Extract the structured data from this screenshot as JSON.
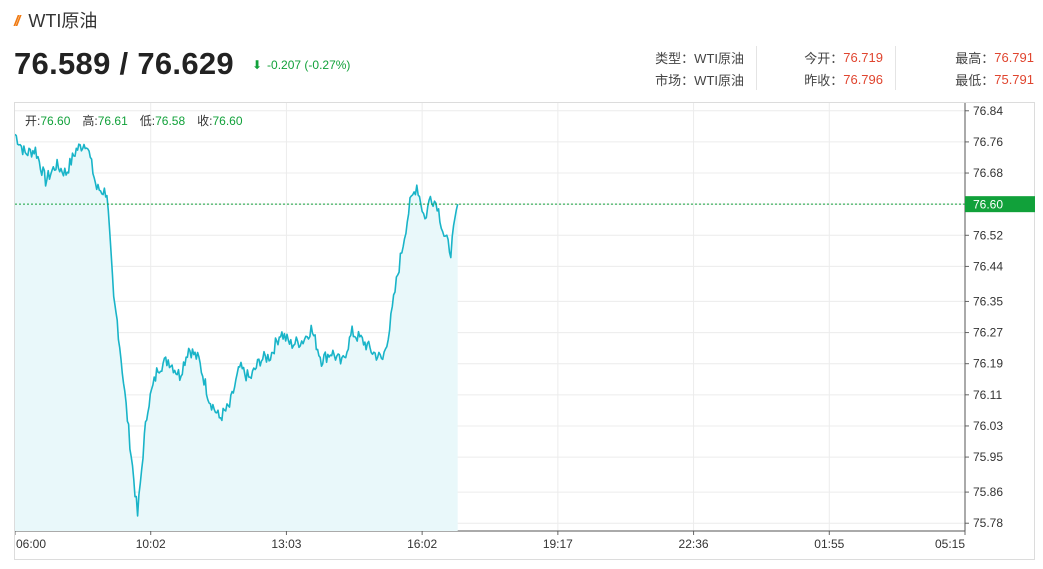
{
  "header": {
    "title": "WTI原油",
    "bid_ask": "76.589 / 76.629",
    "change": "-0.207 (-0.27%)"
  },
  "stats": {
    "type_label": "类型",
    "type_value": "WTI原油",
    "market_label": "市场",
    "market_value": "WTI原油",
    "open_label": "今开",
    "open_value": "76.719",
    "prev_close_label": "昨收",
    "prev_close_value": "76.796",
    "high_label": "最高",
    "high_value": "76.791",
    "low_label": "最低",
    "low_value": "75.791",
    "separator": "："
  },
  "ohlc": {
    "open_label": "开:",
    "open_value": "76.60",
    "high_label": "高:",
    "high_value": "76.61",
    "low_label": "低:",
    "low_value": "76.58",
    "close_label": "收:",
    "close_value": "76.60"
  },
  "colors": {
    "line": "#19b4c8",
    "fill": "#e9f8fa",
    "current_price": "#11a13a",
    "up": "#e0452f",
    "accent": "#f07a12"
  },
  "chart_data": {
    "type": "area",
    "x_tick_labels": [
      "06:00",
      "10:02",
      "13:03",
      "16:02",
      "19:17",
      "22:36",
      "01:55",
      "05:15"
    ],
    "y_tick_labels": [
      "76.84",
      "76.76",
      "76.68",
      "76.60",
      "76.52",
      "76.44",
      "76.35",
      "76.27",
      "76.19",
      "76.11",
      "76.03",
      "75.95",
      "75.86",
      "75.78"
    ],
    "ylim": [
      75.76,
      76.86
    ],
    "current_price": 76.6,
    "current_price_label": "76.60",
    "grid": true,
    "x": [
      "06:00",
      "06:15",
      "06:30",
      "06:45",
      "07:00",
      "07:15",
      "07:30",
      "07:45",
      "08:00",
      "08:15",
      "08:25",
      "08:30",
      "08:45",
      "09:00",
      "09:10",
      "09:15",
      "09:30",
      "09:45",
      "10:02",
      "10:15",
      "10:30",
      "10:45",
      "11:00",
      "11:15",
      "11:30",
      "11:45",
      "12:00",
      "12:15",
      "12:30",
      "12:45",
      "13:03",
      "13:15",
      "13:30",
      "13:45",
      "14:00",
      "14:15",
      "14:30",
      "14:45",
      "15:00",
      "15:10",
      "15:20",
      "15:30",
      "15:40",
      "15:50",
      "16:02",
      "16:10",
      "16:20",
      "16:30",
      "16:40",
      "16:50"
    ],
    "values": [
      76.78,
      76.73,
      76.74,
      76.66,
      76.7,
      76.68,
      76.74,
      76.76,
      76.64,
      76.63,
      76.35,
      76.3,
      76.05,
      75.8,
      76.0,
      76.08,
      76.18,
      76.2,
      76.16,
      76.23,
      76.2,
      76.1,
      76.05,
      76.08,
      76.18,
      76.15,
      76.2,
      76.21,
      76.27,
      76.24,
      76.25,
      76.28,
      76.2,
      76.22,
      76.19,
      76.27,
      76.25,
      76.22,
      76.2,
      76.28,
      76.4,
      76.5,
      76.6,
      76.65,
      76.56,
      76.62,
      76.6,
      76.52,
      76.48,
      76.6
    ]
  }
}
